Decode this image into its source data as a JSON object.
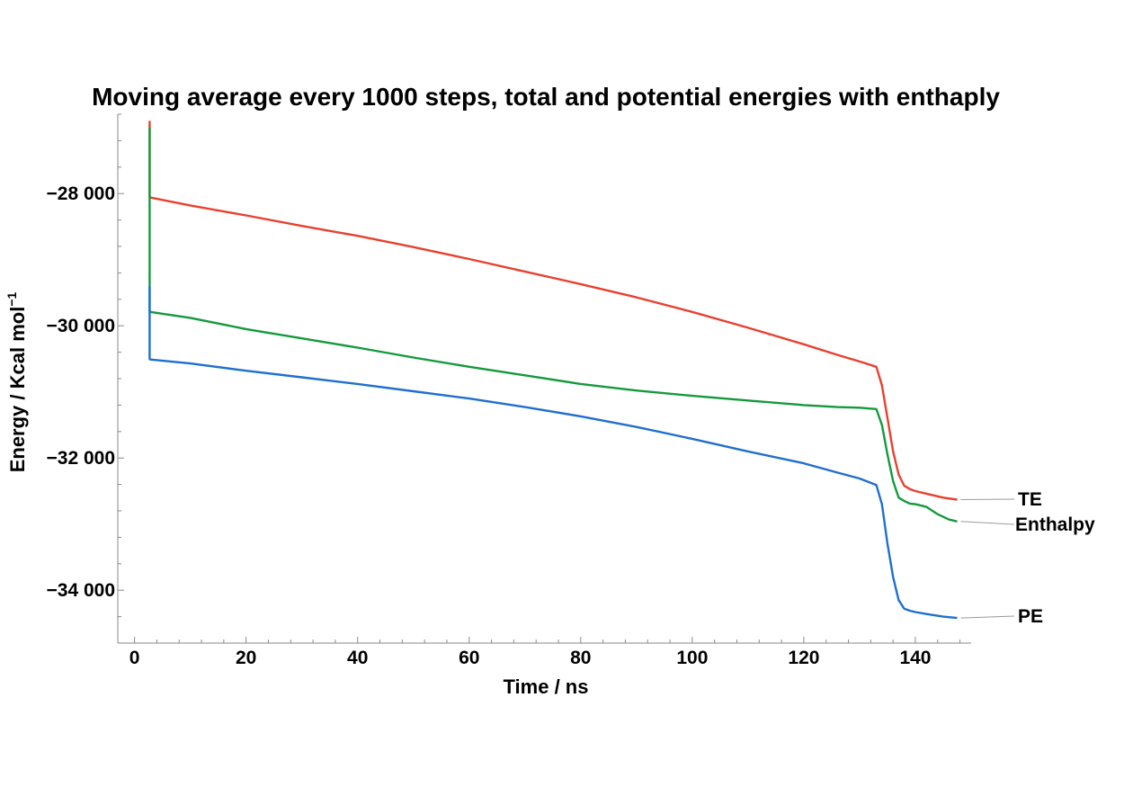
{
  "chart_data": {
    "type": "line",
    "title": "Moving average every 1000 steps, total and potential energies with enthaply",
    "xlabel": "Time / ns",
    "ylabel": "Energy / Kcal mol",
    "ylabel_sup": "−1",
    "xlim": [
      -3,
      150
    ],
    "ylim": [
      -34800,
      -26800
    ],
    "xticks": [
      0,
      20,
      40,
      60,
      80,
      100,
      120,
      140
    ],
    "xtick_labels": [
      "0",
      "20",
      "40",
      "60",
      "80",
      "100",
      "120",
      "140"
    ],
    "yticks": [
      -28000,
      -30000,
      -32000,
      -34000
    ],
    "ytick_labels": [
      "−28 000",
      "−30 000",
      "−32 000",
      "−34 000"
    ],
    "grid": false,
    "legend": "none; series labelled at right end of lines",
    "series": [
      {
        "name": "TE",
        "color": "#e8402f",
        "x": [
          2.7,
          2.7,
          2.8,
          10,
          20,
          30,
          40,
          50,
          60,
          70,
          80,
          90,
          100,
          110,
          120,
          126,
          130,
          133,
          134,
          135,
          136,
          137,
          138,
          139,
          140,
          142,
          145,
          147.5
        ],
        "y": [
          -26900,
          -28050,
          -28060,
          -28180,
          -28330,
          -28490,
          -28640,
          -28810,
          -28990,
          -29180,
          -29370,
          -29570,
          -29790,
          -30030,
          -30280,
          -30440,
          -30540,
          -30620,
          -30900,
          -31400,
          -31900,
          -32250,
          -32420,
          -32470,
          -32500,
          -32540,
          -32600,
          -32630
        ]
      },
      {
        "name": "Enthalpy",
        "color": "#139a3c",
        "x": [
          2.7,
          2.7,
          2.8,
          10,
          20,
          30,
          40,
          50,
          60,
          70,
          80,
          90,
          100,
          110,
          120,
          126,
          130,
          133,
          134,
          135,
          136,
          137,
          138,
          139,
          140,
          142,
          144,
          146,
          147.5
        ],
        "y": [
          -27000,
          -29780,
          -29790,
          -29880,
          -30050,
          -30190,
          -30330,
          -30480,
          -30620,
          -30750,
          -30880,
          -30980,
          -31060,
          -31130,
          -31200,
          -31230,
          -31240,
          -31260,
          -31500,
          -31950,
          -32350,
          -32600,
          -32650,
          -32690,
          -32700,
          -32740,
          -32850,
          -32930,
          -32960
        ]
      },
      {
        "name": "PE",
        "color": "#1f6fcf",
        "x": [
          2.7,
          2.7,
          2.8,
          10,
          20,
          30,
          40,
          50,
          60,
          70,
          80,
          90,
          100,
          110,
          120,
          126,
          130,
          133,
          134,
          135,
          136,
          137,
          138,
          139,
          140,
          142,
          145,
          147.5
        ],
        "y": [
          -29400,
          -30500,
          -30510,
          -30570,
          -30680,
          -30780,
          -30880,
          -30990,
          -31100,
          -31230,
          -31370,
          -31530,
          -31710,
          -31900,
          -32080,
          -32220,
          -32310,
          -32410,
          -32700,
          -33300,
          -33800,
          -34150,
          -34280,
          -34310,
          -34330,
          -34360,
          -34400,
          -34420
        ]
      }
    ]
  }
}
